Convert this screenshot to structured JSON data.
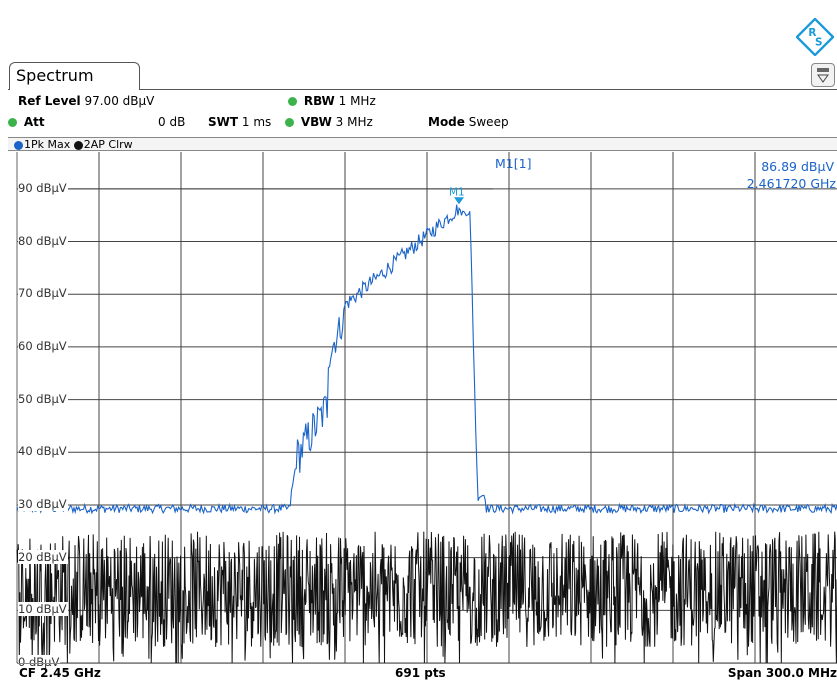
{
  "tab": {
    "title": "Spectrum"
  },
  "header": {
    "ref_level_label": "Ref Level",
    "ref_level_value": "97.00 dBµV",
    "att_label": "Att",
    "att_value": "0 dB",
    "swt_label": "SWT",
    "swt_value": "1 ms",
    "rbw_label": "RBW",
    "rbw_value": "1 MHz",
    "vbw_label": "VBW",
    "vbw_value": "3 MHz",
    "mode_label": "Mode",
    "mode_value": "Sweep"
  },
  "traces": {
    "trace1": "1Pk Max",
    "trace2": "2AP Clrw",
    "trace1_color": "#1a63c8",
    "trace2_color": "#111111"
  },
  "marker": {
    "name": "M1[1]",
    "flag": "M1",
    "level": "86.89 dBµV",
    "frequency": "2.461720 GHz",
    "color": "#1a9ad8"
  },
  "y_labels": [
    "90 dBµV",
    "80 dBµV",
    "70 dBµV",
    "60 dBµV",
    "50 dBµV",
    "40 dBµV",
    "30 dBµV",
    "20 dBµV",
    "10 dBµV",
    "0 dBµV"
  ],
  "footer": {
    "cf": "CF 2.45 GHz",
    "pts": "691 pts",
    "span": "Span 300.0 MHz"
  },
  "icons": {
    "logo": "rohde-schwarz-logo",
    "menu": "trace-menu-icon"
  }
}
